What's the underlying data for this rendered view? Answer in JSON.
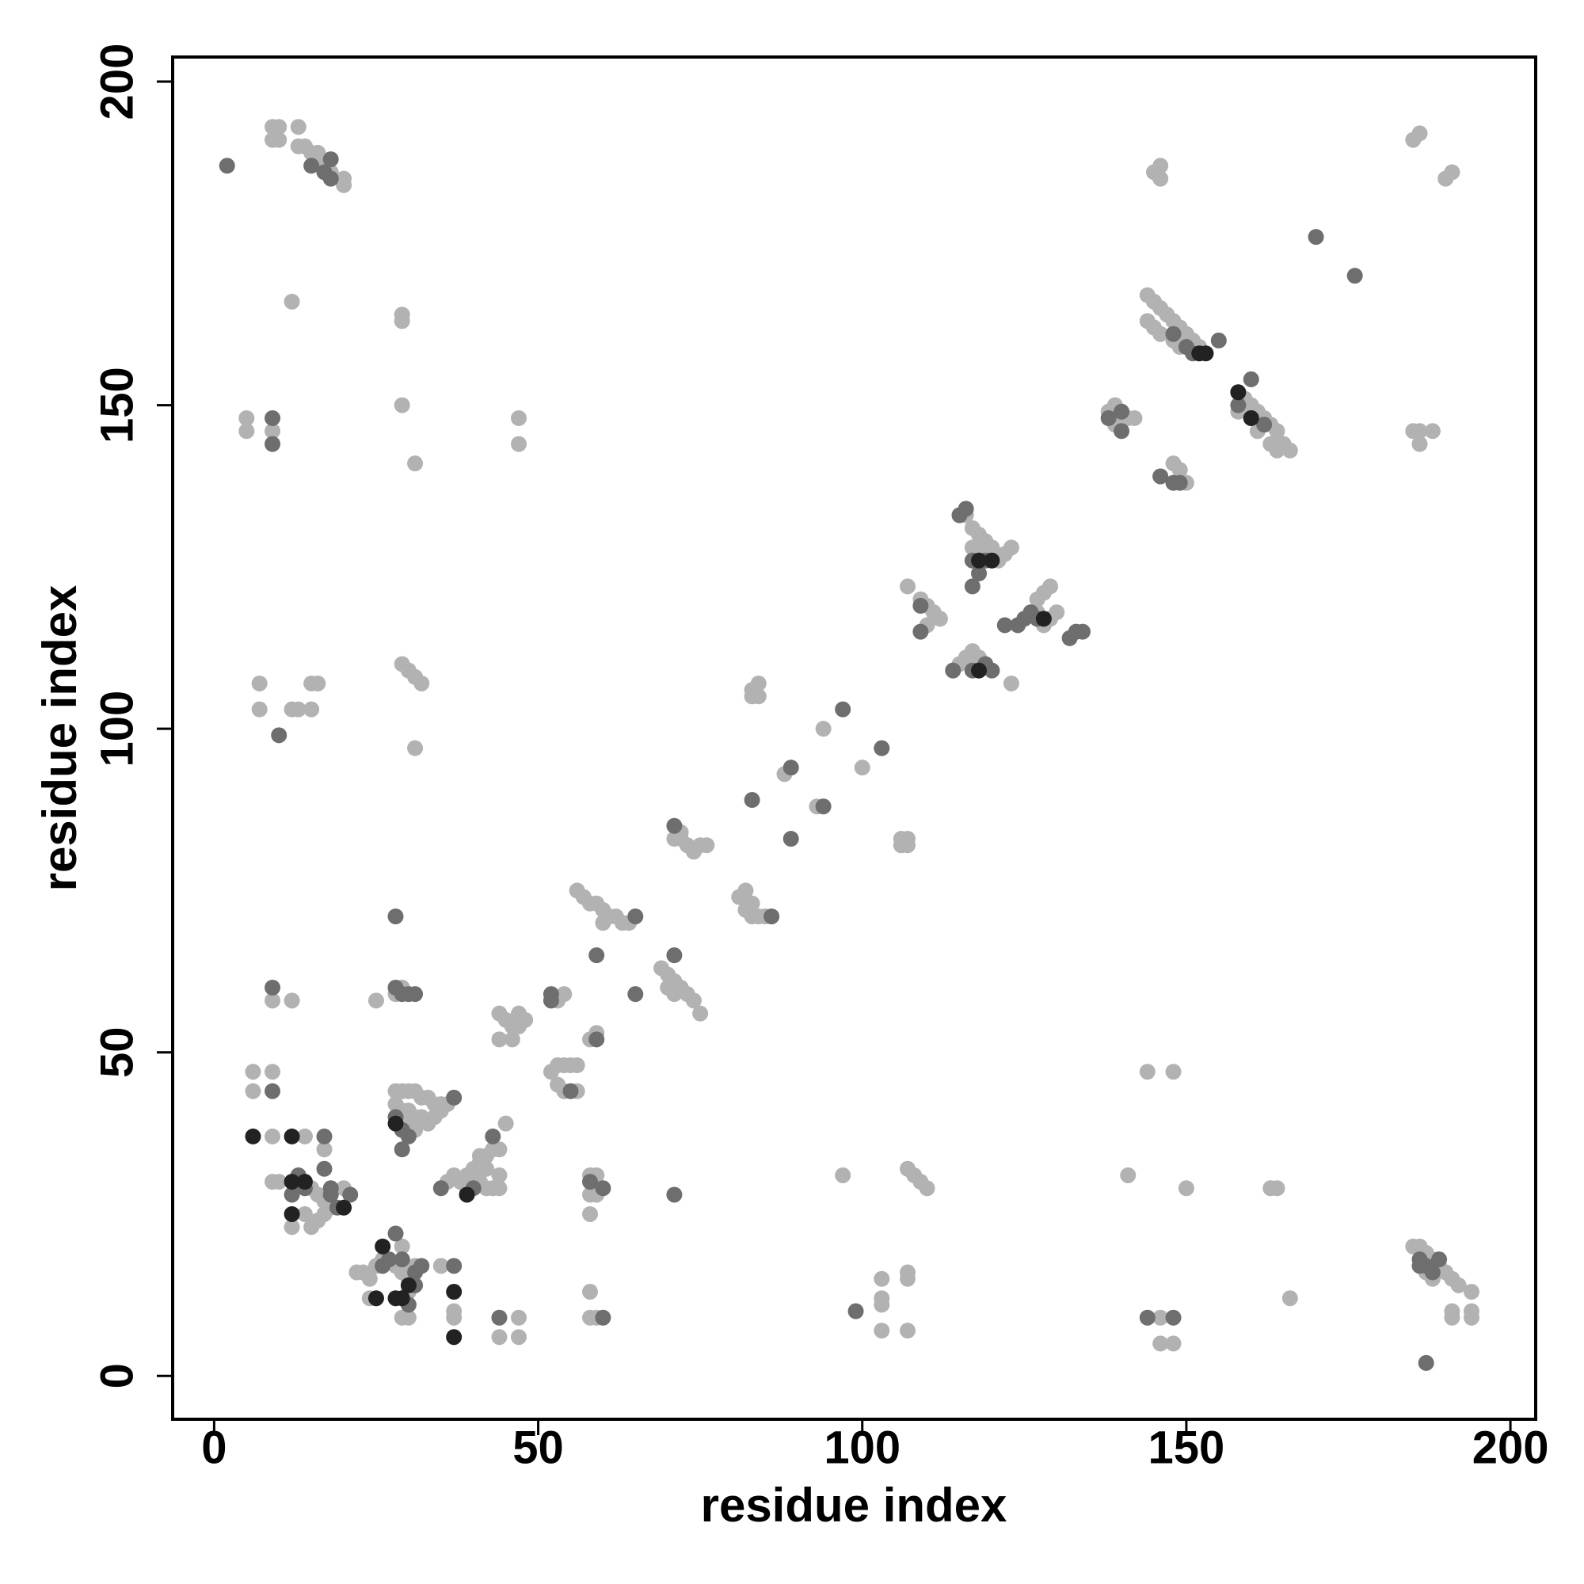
{
  "chart_data": {
    "type": "scatter",
    "xlabel": "residue index",
    "ylabel": "residue index",
    "xlim": [
      -6.4,
      203.9
    ],
    "ylim": [
      -6.7,
      203.8
    ],
    "xticks": [
      0,
      50,
      100,
      150,
      200
    ],
    "yticks": [
      0,
      50,
      100,
      150,
      200
    ],
    "series": [
      {
        "color": "#b2b2b2",
        "x": [
          9,
          10,
          13,
          9,
          10,
          13,
          14,
          15,
          16,
          16,
          17,
          18,
          20,
          20,
          12,
          29,
          29,
          29,
          31,
          5,
          5,
          47,
          47,
          9,
          7,
          7,
          12,
          13,
          15,
          16,
          15,
          29,
          30,
          31,
          32,
          31,
          94,
          100,
          88,
          93,
          56,
          57,
          58,
          59,
          60,
          61,
          62,
          63,
          64,
          60,
          82,
          81,
          83,
          82,
          83,
          84,
          85,
          72,
          71,
          72,
          73,
          74,
          75,
          76,
          69,
          70,
          71,
          70,
          72,
          73,
          74,
          75,
          71,
          84,
          83,
          83,
          84,
          106,
          107,
          106,
          107,
          54,
          53,
          44,
          45,
          46,
          47,
          47,
          46,
          44,
          48,
          45,
          52,
          53,
          54,
          55,
          56,
          53,
          54,
          56,
          59,
          58,
          28,
          29,
          30,
          31,
          32,
          33,
          34,
          35,
          28,
          29,
          30,
          31,
          32,
          33,
          34,
          30,
          31,
          29,
          35,
          36,
          38,
          39,
          40,
          41,
          42,
          43,
          44,
          40,
          41,
          42,
          43,
          44,
          44,
          42,
          41,
          39,
          36,
          37,
          29,
          28,
          25,
          12,
          9,
          6,
          9,
          6,
          9,
          14,
          17,
          9,
          10,
          13,
          15,
          16,
          17,
          18,
          17,
          16,
          15,
          12,
          14,
          20,
          22,
          23,
          24,
          25,
          24,
          26,
          28,
          29,
          30,
          31,
          30,
          29,
          30,
          35,
          37,
          37,
          44,
          47,
          47,
          29,
          58,
          59,
          59,
          58,
          58,
          58,
          58,
          59,
          97,
          103,
          103,
          103,
          103,
          107,
          107,
          107,
          107,
          108,
          109,
          110,
          141,
          150,
          144,
          148,
          146,
          146,
          148,
          163,
          164,
          166,
          185,
          186,
          187,
          188,
          189,
          190,
          191,
          192,
          194,
          194,
          191,
          191,
          194,
          188,
          187,
          145,
          146,
          146,
          185,
          186,
          190,
          191,
          185,
          186,
          186,
          188,
          144,
          145,
          146,
          147,
          148,
          149,
          150,
          151,
          152,
          144,
          145,
          146,
          148,
          149,
          158,
          159,
          160,
          161,
          162,
          163,
          164,
          165,
          166,
          158,
          161,
          163,
          164,
          138,
          139,
          141,
          142,
          139,
          146,
          148,
          149,
          150,
          116,
          117,
          118,
          119,
          120,
          121,
          122,
          123,
          117,
          118,
          107,
          109,
          110,
          111,
          112,
          110,
          127,
          128,
          129,
          130,
          129,
          128,
          127,
          114,
          115,
          116,
          117,
          118,
          123
        ],
        "values": [
          193,
          193,
          193,
          191,
          191,
          190,
          190,
          189,
          189,
          188,
          187,
          186,
          185,
          184,
          166,
          164,
          163,
          150,
          141,
          148,
          146,
          148,
          144,
          146,
          107,
          103,
          103,
          103,
          107,
          107,
          103,
          110,
          109,
          108,
          107,
          97,
          100,
          94,
          93,
          88,
          75,
          74,
          73,
          73,
          72,
          71,
          71,
          70,
          70,
          70,
          75,
          74,
          73,
          72,
          71,
          71,
          71,
          84,
          83,
          83,
          82,
          81,
          82,
          82,
          63,
          62,
          61,
          60,
          60,
          59,
          58,
          56,
          59,
          107,
          106,
          105,
          105,
          83,
          83,
          82,
          82,
          59,
          58,
          56,
          55,
          54,
          54,
          56,
          52,
          52,
          55,
          39,
          47,
          48,
          48,
          48,
          48,
          45,
          44,
          44,
          53,
          52,
          44,
          44,
          44,
          44,
          43,
          43,
          42,
          42,
          42,
          41,
          41,
          40,
          40,
          39,
          40,
          39,
          38,
          40,
          41,
          42,
          30,
          31,
          32,
          33,
          34,
          35,
          35,
          30,
          30,
          29,
          29,
          29,
          31,
          32,
          34,
          29,
          30,
          31,
          60,
          59,
          58,
          58,
          58,
          47,
          47,
          44,
          37,
          37,
          35,
          30,
          30,
          30,
          29,
          28,
          27,
          26,
          25,
          24,
          23,
          23,
          25,
          29,
          16,
          16,
          15,
          17,
          12,
          18,
          17,
          16,
          15,
          17,
          13,
          9,
          9,
          17,
          10,
          9,
          6,
          6,
          9,
          20,
          31,
          31,
          28,
          28,
          25,
          13,
          9,
          9,
          31,
          15,
          12,
          11,
          7,
          16,
          15,
          7,
          32,
          31,
          30,
          29,
          31,
          29,
          47,
          47,
          9,
          5,
          5,
          29,
          29,
          12,
          20,
          20,
          19,
          18,
          17,
          16,
          15,
          14,
          13,
          10,
          10,
          9,
          9,
          15,
          16,
          186,
          187,
          185,
          191,
          192,
          185,
          186,
          146,
          144,
          146,
          146,
          167,
          166,
          165,
          164,
          163,
          162,
          161,
          160,
          159,
          163,
          162,
          161,
          160,
          159,
          152,
          151,
          150,
          149,
          148,
          147,
          146,
          144,
          143,
          149,
          146,
          144,
          143,
          149,
          150,
          148,
          148,
          147,
          139,
          141,
          140,
          138,
          133,
          131,
          130,
          129,
          128,
          126,
          127,
          128,
          128,
          127,
          122,
          120,
          119,
          118,
          117,
          116,
          120,
          121,
          122,
          118,
          117,
          116,
          118,
          109,
          110,
          111,
          112,
          111,
          107
        ]
      },
      {
        "color": "#6e6e6e",
        "x": [
          2,
          15,
          17,
          18,
          18,
          9,
          9,
          10,
          97,
          103,
          89,
          94,
          83,
          89,
          65,
          71,
          65,
          59,
          52,
          59,
          58,
          60,
          44,
          71,
          86,
          71,
          52,
          55,
          37,
          28,
          29,
          30,
          29,
          43,
          40,
          35,
          28,
          29,
          30,
          31,
          28,
          9,
          9,
          17,
          13,
          14,
          17,
          18,
          18,
          19,
          12,
          21,
          26,
          27,
          28,
          29,
          31,
          32,
          30,
          31,
          37,
          60,
          99,
          144,
          148,
          186,
          186,
          187,
          188,
          189,
          187,
          170,
          176,
          148,
          150,
          151,
          155,
          160,
          158,
          160,
          162,
          138,
          140,
          140,
          146,
          148,
          149,
          116,
          115,
          117,
          118,
          119,
          117,
          109,
          109,
          124,
          125,
          126,
          127,
          133,
          132,
          134,
          122,
          114,
          117,
          119,
          120
        ],
        "values": [
          187,
          187,
          186,
          185,
          188,
          148,
          144,
          99,
          103,
          97,
          94,
          88,
          89,
          83,
          71,
          65,
          59,
          65,
          59,
          52,
          30,
          9,
          9,
          28,
          71,
          85,
          58,
          44,
          43,
          40,
          38,
          37,
          35,
          37,
          29,
          29,
          60,
          59,
          59,
          59,
          71,
          60,
          44,
          37,
          31,
          29,
          32,
          29,
          28,
          26,
          28,
          28,
          17,
          18,
          22,
          18,
          16,
          17,
          11,
          14,
          17,
          29,
          10,
          9,
          9,
          18,
          17,
          17,
          16,
          18,
          2,
          176,
          170,
          161,
          159,
          158,
          160,
          154,
          150,
          148,
          147,
          148,
          149,
          146,
          139,
          138,
          138,
          134,
          133,
          126,
          124,
          126,
          122,
          119,
          115,
          116,
          117,
          118,
          117,
          115,
          114,
          115,
          116,
          109,
          109,
          110,
          109
        ]
      },
      {
        "color": "#222222",
        "x": [
          6,
          12,
          12,
          12,
          20,
          14,
          39,
          26,
          25,
          28,
          29,
          37,
          37,
          30,
          152,
          153,
          158,
          160,
          118,
          120,
          128,
          118,
          28
        ],
        "values": [
          37,
          37,
          30,
          25,
          26,
          30,
          28,
          20,
          12,
          12,
          12,
          13,
          6,
          14,
          158,
          158,
          152,
          148,
          126,
          126,
          117,
          109,
          39
        ]
      }
    ]
  }
}
